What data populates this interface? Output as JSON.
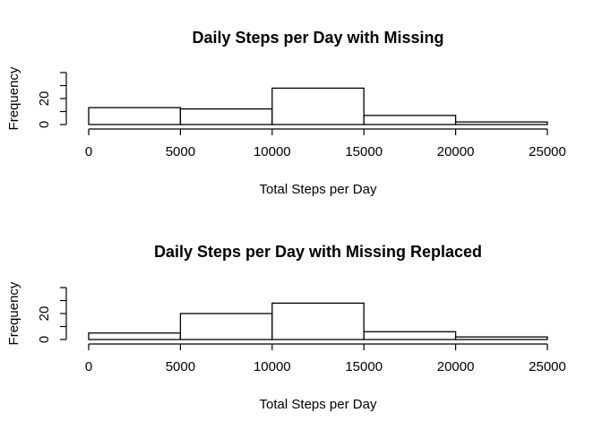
{
  "chart_data": [
    {
      "type": "bar",
      "title": "Daily Steps per Day with Missing",
      "xlabel": "Total Steps per Day",
      "ylabel": "Frequency",
      "bins": [
        [
          0,
          5000
        ],
        [
          5000,
          10000
        ],
        [
          10000,
          15000
        ],
        [
          15000,
          20000
        ],
        [
          20000,
          25000
        ]
      ],
      "values": [
        13,
        12,
        28,
        7,
        2
      ],
      "xlim": [
        0,
        25000
      ],
      "ylim": [
        0,
        40
      ],
      "xticks": [
        "0",
        "5000",
        "10000",
        "15000",
        "20000",
        "25000"
      ],
      "yticks": [
        "0",
        "20"
      ],
      "grid": false
    },
    {
      "type": "bar",
      "title": "Daily Steps per Day with Missing Replaced",
      "xlabel": "Total Steps per Day",
      "ylabel": "Frequency",
      "bins": [
        [
          0,
          5000
        ],
        [
          5000,
          10000
        ],
        [
          10000,
          15000
        ],
        [
          15000,
          20000
        ],
        [
          20000,
          25000
        ]
      ],
      "values": [
        5,
        20,
        28,
        6,
        2
      ],
      "xlim": [
        0,
        25000
      ],
      "ylim": [
        0,
        40
      ],
      "xticks": [
        "0",
        "5000",
        "10000",
        "15000",
        "20000",
        "25000"
      ],
      "yticks": [
        "0",
        "20"
      ],
      "grid": false
    }
  ]
}
